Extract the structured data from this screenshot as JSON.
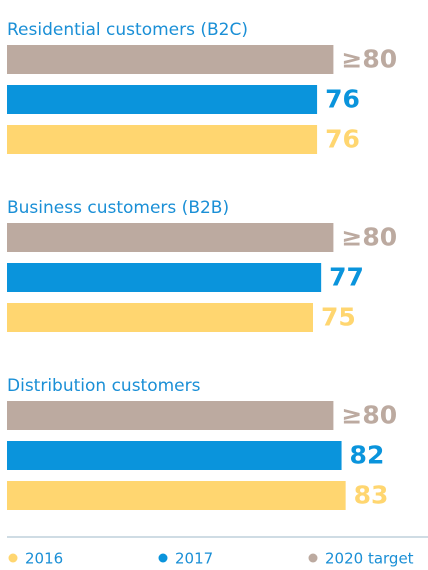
{
  "chart_data": {
    "type": "bar",
    "categories": [
      "Residential customers (B2C)",
      "Business customers (B2B)",
      "Distribution customers"
    ],
    "series": [
      {
        "name": "2016",
        "color": "#ffd670",
        "values": [
          76,
          75,
          83
        ]
      },
      {
        "name": "2017",
        "color": "#0a94dc",
        "values": [
          76,
          77,
          82
        ]
      },
      {
        "name": "2020 target",
        "color": "#bcaaa0",
        "values": [
          80,
          80,
          80
        ],
        "value_labels": [
          "≥80",
          "≥80",
          "≥80"
        ]
      }
    ],
    "legend": "bottom"
  }
}
